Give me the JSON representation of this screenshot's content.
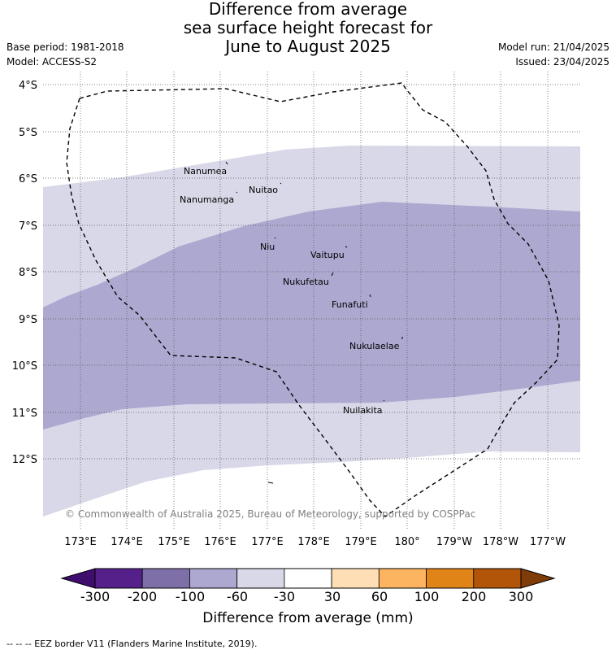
{
  "title_lines": [
    "Difference from average",
    "sea surface height forecast for",
    "June to August 2025"
  ],
  "meta_left": [
    "Base period: 1981-2018",
    "Model: ACCESS-S2"
  ],
  "meta_right": [
    "Model run: 21/04/2025",
    "Issued: 23/04/2025"
  ],
  "lat_labels": [
    "4°S",
    "5°S",
    "6°S",
    "7°S",
    "8°S",
    "9°S",
    "10°S",
    "11°S",
    "12°S"
  ],
  "lon_labels": [
    "173°E",
    "174°E",
    "175°E",
    "176°E",
    "177°E",
    "178°E",
    "179°E",
    "180°",
    "179°W",
    "178°W",
    "177°W"
  ],
  "places": [
    "Nanumea",
    "Nuitao",
    "Nanumanga",
    "Niu",
    "Vaitupu",
    "Nukufetau",
    "Funafuti",
    "Nukulaelae",
    "Nuilakita"
  ],
  "copyright": "© Commonwealth of Australia 2025, Bureau of Meteorology, supported by COSPPac",
  "colorbar": {
    "labels": [
      "-300",
      "-200",
      "-100",
      "-60",
      "-30",
      "30",
      "60",
      "100",
      "200",
      "300"
    ],
    "colors": [
      "#3f0d6e",
      "#55208a",
      "#7e6fa9",
      "#ada8d0",
      "#d8d8e8",
      "#ffffff",
      "#fedfb5",
      "#fdb460",
      "#e08418",
      "#b25508",
      "#7f3b08"
    ],
    "title": "Difference from average (mm)"
  },
  "footnote": "-- -- -- EEZ border V11 (Flanders Marine Institute, 2019)."
}
